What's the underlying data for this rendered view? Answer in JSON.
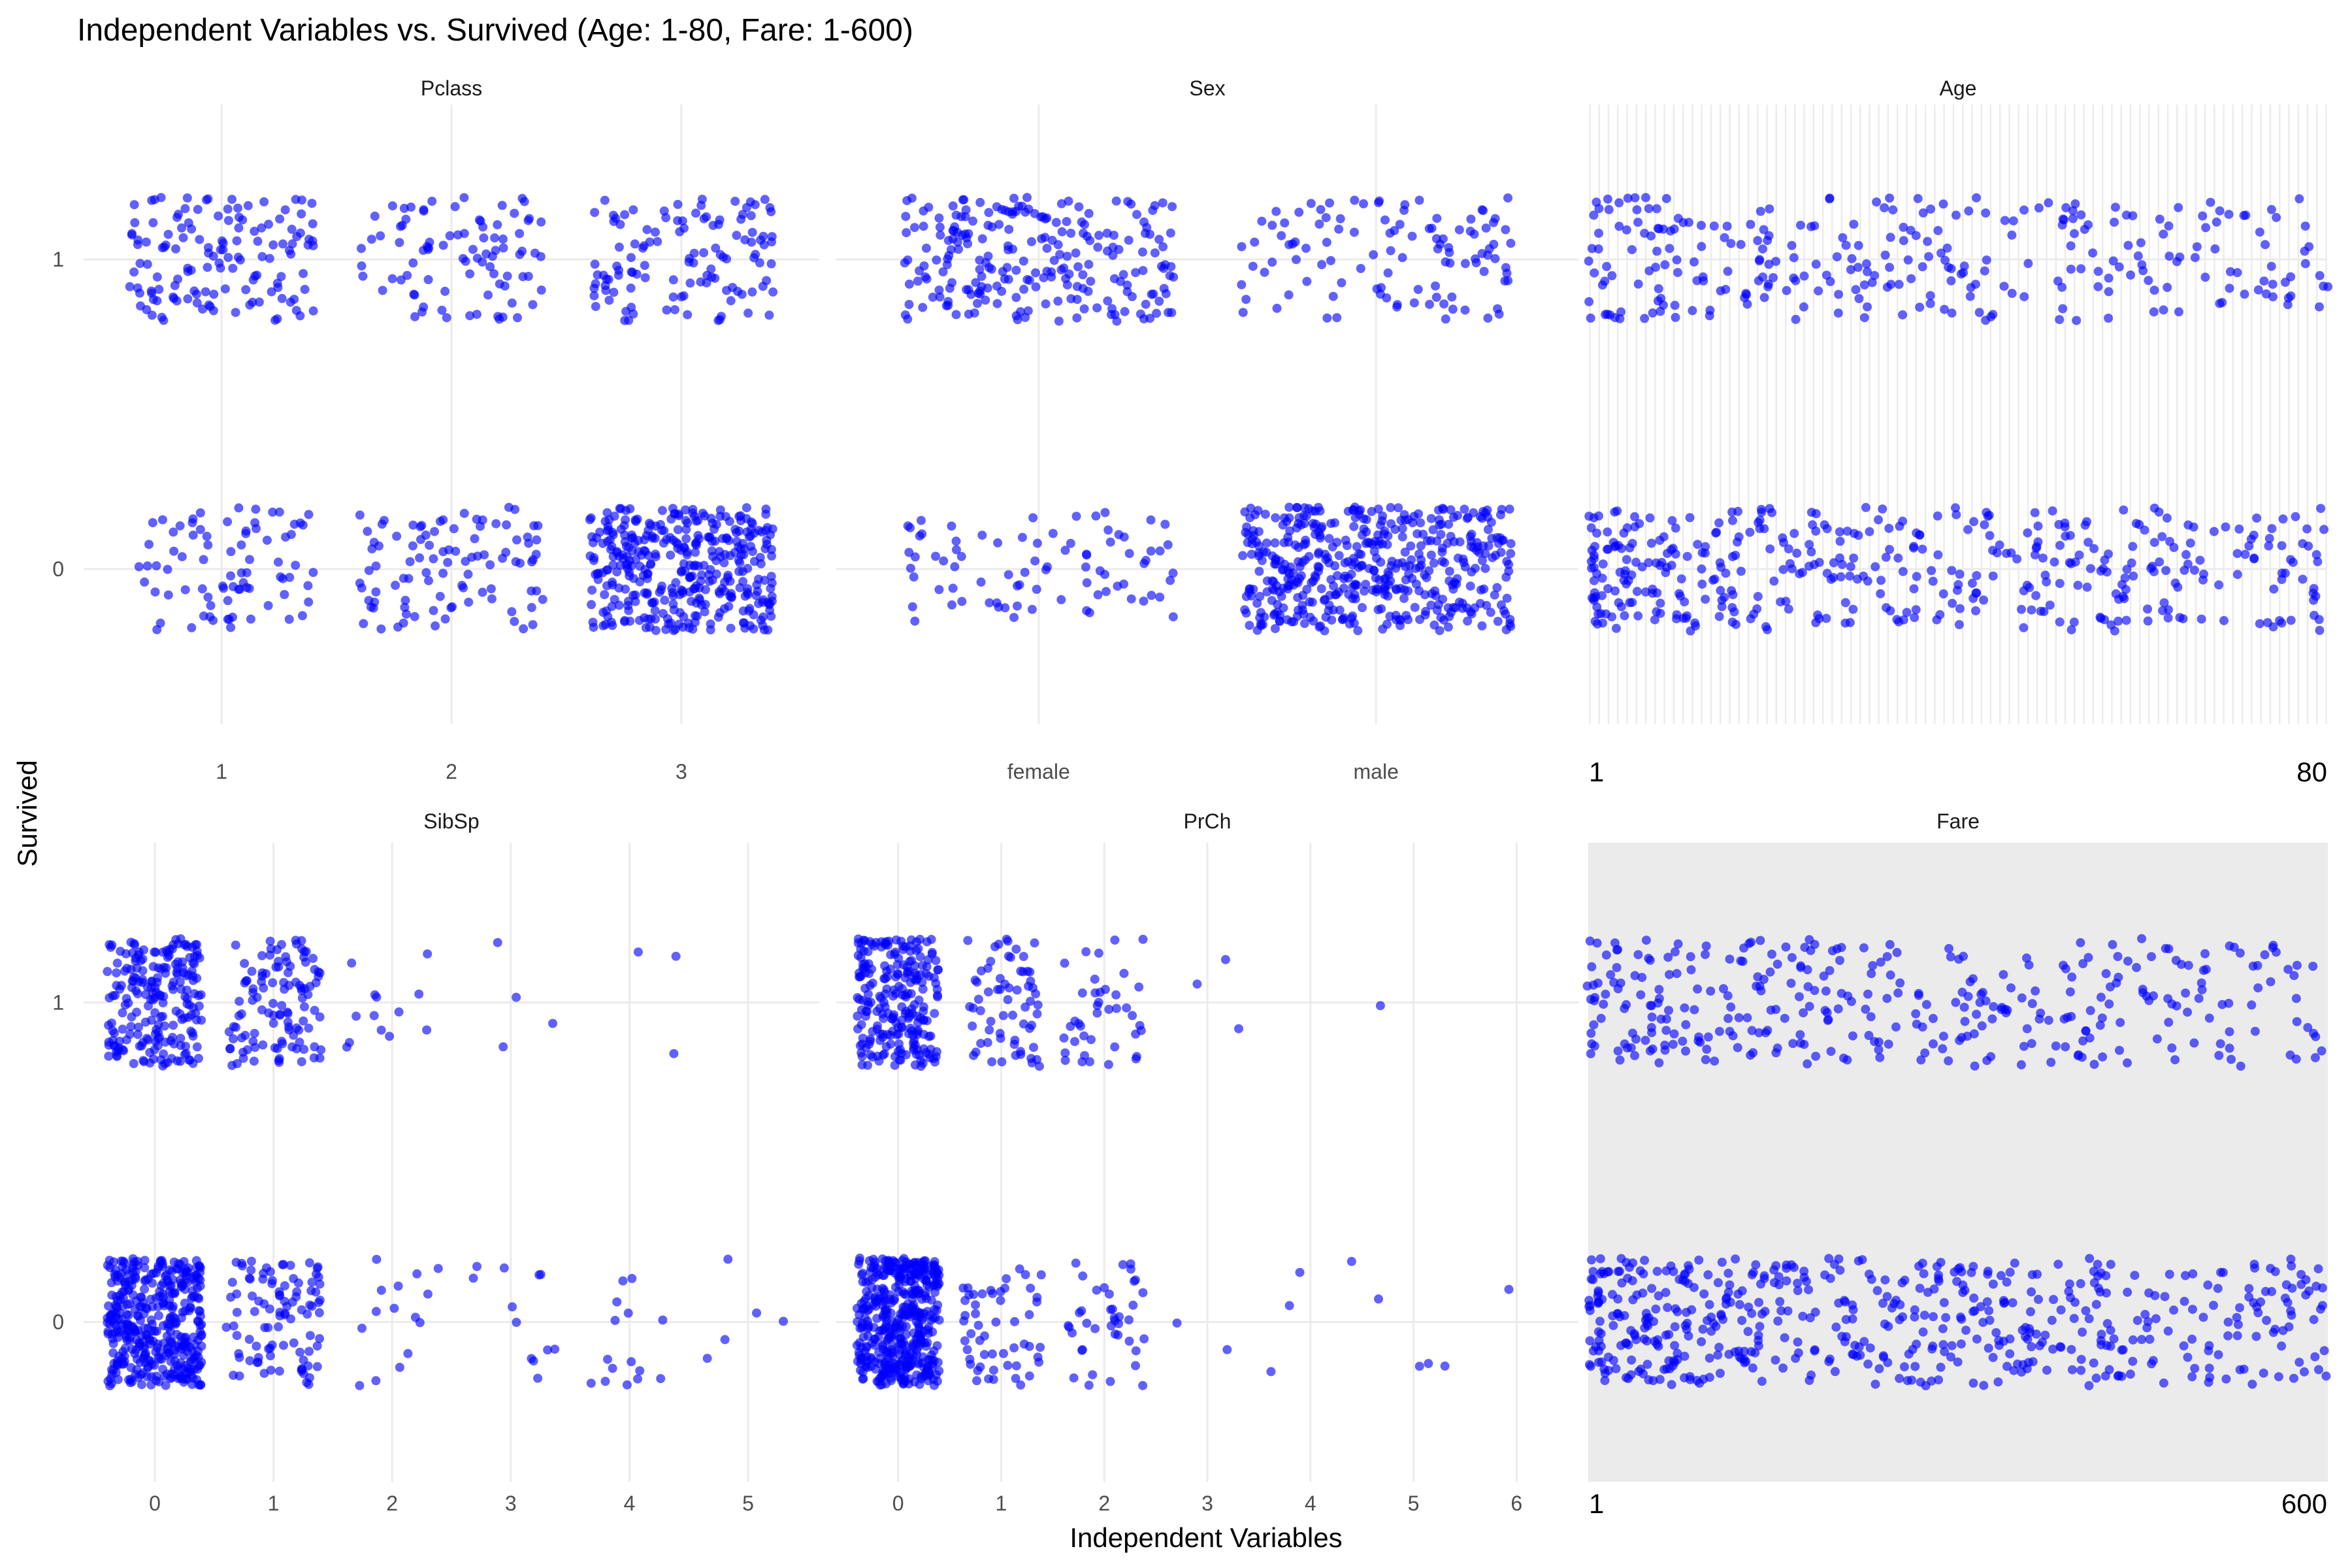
{
  "title": "Independent Variables vs. Survived (Age: 1-80, Fare: 1-600)",
  "xlabel": "Independent Variables",
  "ylabel": "Survived",
  "point_color": "#0000ff",
  "chart_data": [
    {
      "type": "scatter",
      "panel": "Pclass",
      "x_type": "categorical",
      "categories": [
        "1",
        "2",
        "3"
      ],
      "y_ticks": [
        "0",
        "1"
      ],
      "jitter": true,
      "counts": [
        {
          "x": "1",
          "y": 0,
          "n": 80
        },
        {
          "x": "1",
          "y": 1,
          "n": 136
        },
        {
          "x": "2",
          "y": 0,
          "n": 97
        },
        {
          "x": "2",
          "y": 1,
          "n": 87
        },
        {
          "x": "3",
          "y": 0,
          "n": 372
        },
        {
          "x": "3",
          "y": 1,
          "n": 119
        }
      ]
    },
    {
      "type": "scatter",
      "panel": "Sex",
      "x_type": "categorical",
      "categories": [
        "female",
        "male"
      ],
      "y_ticks": [
        "0",
        "1"
      ],
      "jitter": true,
      "counts": [
        {
          "x": "female",
          "y": 0,
          "n": 81
        },
        {
          "x": "female",
          "y": 1,
          "n": 233
        },
        {
          "x": "male",
          "y": 0,
          "n": 468
        },
        {
          "x": "male",
          "y": 1,
          "n": 109
        }
      ]
    },
    {
      "type": "scatter",
      "panel": "Age",
      "x_type": "discrete-range",
      "x_range": [
        1,
        80
      ],
      "x_tick_labels": [
        "1",
        "80"
      ],
      "y_ticks": [
        "0",
        "1"
      ],
      "jitter": true,
      "counts": [
        {
          "y": 0,
          "n": 424
        },
        {
          "y": 1,
          "n": 290
        }
      ]
    },
    {
      "type": "scatter",
      "panel": "SibSp",
      "x_type": "categorical",
      "categories": [
        "0",
        "1",
        "2",
        "3",
        "4",
        "5"
      ],
      "y_ticks": [
        "0",
        "1"
      ],
      "jitter": true,
      "counts": [
        {
          "x": "0",
          "y": 0,
          "n": 398
        },
        {
          "x": "0",
          "y": 1,
          "n": 210
        },
        {
          "x": "1",
          "y": 0,
          "n": 97
        },
        {
          "x": "1",
          "y": 1,
          "n": 112
        },
        {
          "x": "2",
          "y": 0,
          "n": 15
        },
        {
          "x": "2",
          "y": 1,
          "n": 13
        },
        {
          "x": "3",
          "y": 0,
          "n": 12
        },
        {
          "x": "3",
          "y": 1,
          "n": 4
        },
        {
          "x": "4",
          "y": 0,
          "n": 15
        },
        {
          "x": "4",
          "y": 1,
          "n": 3
        },
        {
          "x": "5",
          "y": 0,
          "n": 5
        }
      ]
    },
    {
      "type": "scatter",
      "panel": "PrCh",
      "x_type": "categorical",
      "categories": [
        "0",
        "1",
        "2",
        "3",
        "4",
        "5",
        "6"
      ],
      "y_ticks": [
        "0",
        "1"
      ],
      "jitter": true,
      "counts": [
        {
          "x": "0",
          "y": 0,
          "n": 445
        },
        {
          "x": "0",
          "y": 1,
          "n": 233
        },
        {
          "x": "1",
          "y": 0,
          "n": 53
        },
        {
          "x": "1",
          "y": 1,
          "n": 65
        },
        {
          "x": "2",
          "y": 0,
          "n": 40
        },
        {
          "x": "2",
          "y": 1,
          "n": 40
        },
        {
          "x": "3",
          "y": 0,
          "n": 2
        },
        {
          "x": "3",
          "y": 1,
          "n": 3
        },
        {
          "x": "4",
          "y": 0,
          "n": 4
        },
        {
          "x": "5",
          "y": 0,
          "n": 4
        },
        {
          "x": "5",
          "y": 1,
          "n": 1
        },
        {
          "x": "6",
          "y": 0,
          "n": 1
        }
      ]
    },
    {
      "type": "scatter",
      "panel": "Fare",
      "x_type": "discrete-range",
      "x_range": [
        1,
        600
      ],
      "x_tick_labels": [
        "1",
        "600"
      ],
      "y_ticks": [
        "0",
        "1"
      ],
      "jitter": true,
      "counts": [
        {
          "y": 0,
          "n": 549
        },
        {
          "y": 1,
          "n": 342
        }
      ]
    }
  ]
}
